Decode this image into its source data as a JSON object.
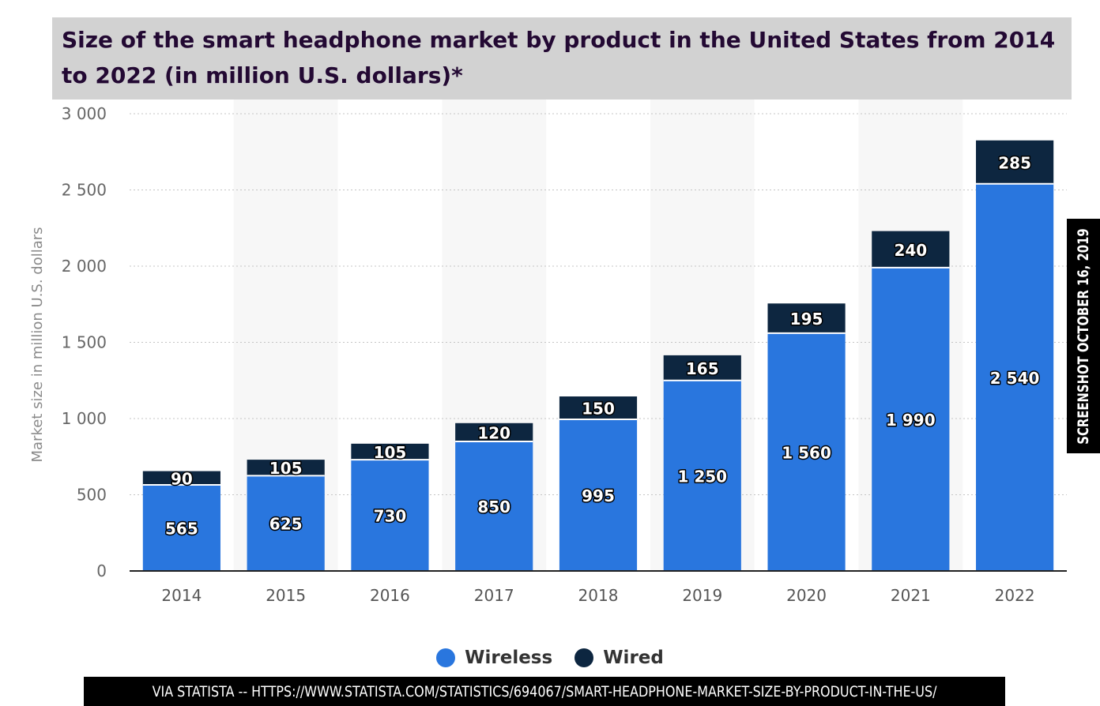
{
  "chart_data": {
    "type": "bar",
    "stacked": true,
    "title": "Size of the smart headphone market by product in the United States from 2014 to 2022 (in million U.S. dollars)*",
    "xlabel": "",
    "ylabel": "Market size in million U.S. dollars",
    "ylim": [
      0,
      3000
    ],
    "yticks": [
      0,
      500,
      1000,
      1500,
      2000,
      2500,
      3000
    ],
    "ytick_labels": [
      "0",
      "500",
      "1 000",
      "1 500",
      "2 000",
      "2 500",
      "3 000"
    ],
    "categories": [
      "2014",
      "2015",
      "2016",
      "2017",
      "2018",
      "2019",
      "2020",
      "2021",
      "2022"
    ],
    "series": [
      {
        "name": "Wireless",
        "color": "#2976de",
        "values": [
          565,
          625,
          730,
          850,
          995,
          1250,
          1560,
          1990,
          2540
        ],
        "labels": [
          "565",
          "625",
          "730",
          "850",
          "995",
          "1 250",
          "1 560",
          "1 990",
          "2 540"
        ]
      },
      {
        "name": "Wired",
        "color": "#0d2640",
        "values": [
          90,
          105,
          105,
          120,
          150,
          165,
          195,
          240,
          285
        ],
        "labels": [
          "90",
          "105",
          "105",
          "120",
          "150",
          "165",
          "195",
          "240",
          "285"
        ]
      }
    ],
    "grid": true,
    "legend_position": "bottom-center"
  },
  "source_text": "VIA STATISTA --  HTTPS://WWW.STATISTA.COM/STATISTICS/694067/SMART-HEADPHONE-MARKET-SIZE-BY-PRODUCT-IN-THE-US/",
  "watermark_text": "SCREENSHOT OCTOBER 16, 2019"
}
